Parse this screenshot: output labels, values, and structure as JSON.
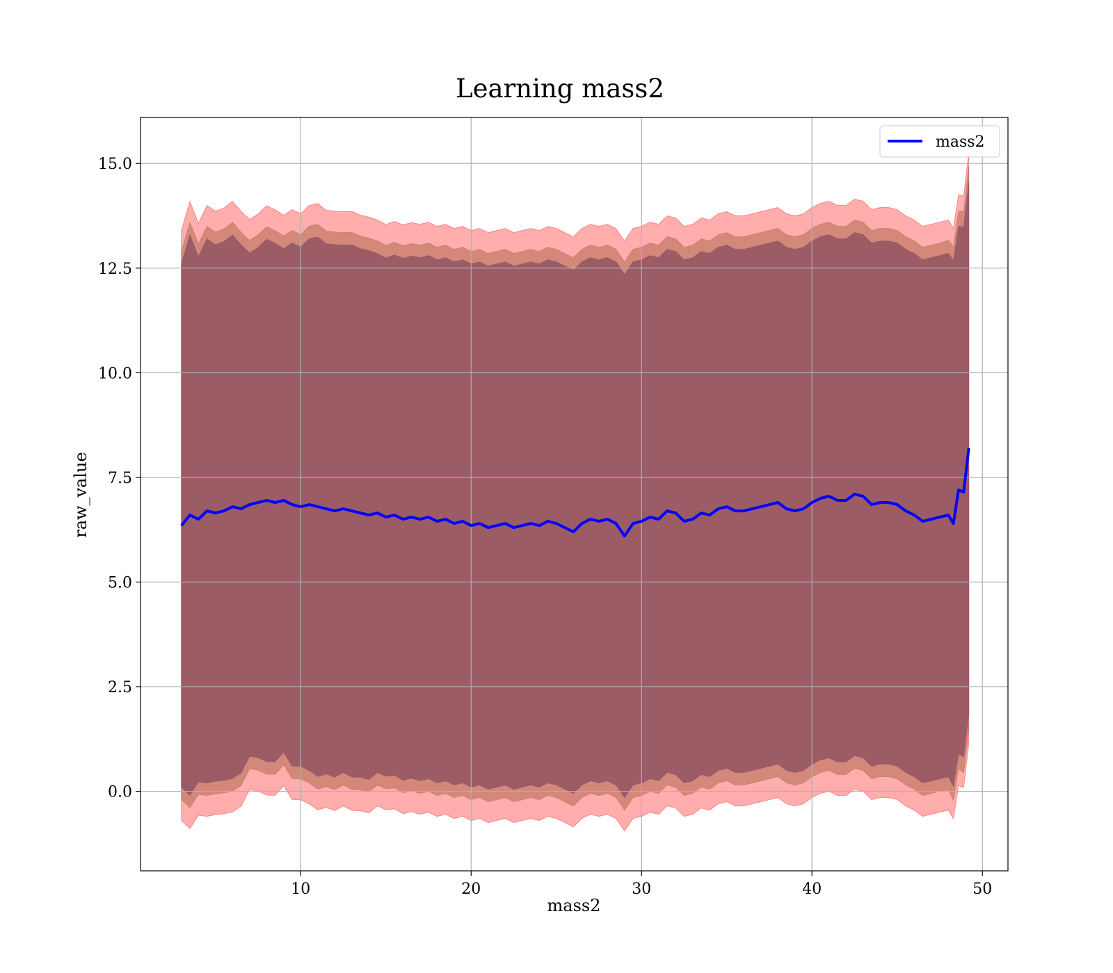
{
  "chart_data": {
    "type": "line",
    "title": "Learning mass2",
    "xlabel": "mass2",
    "ylabel": "raw_value",
    "xlim": [
      0.6,
      51.5
    ],
    "ylim": [
      -1.9,
      16.1
    ],
    "xticks": [
      10,
      20,
      30,
      40,
      50
    ],
    "xtick_labels": [
      "10",
      "20",
      "30",
      "40",
      "50"
    ],
    "yticks": [
      0.0,
      2.5,
      5.0,
      7.5,
      10.0,
      12.5,
      15.0
    ],
    "ytick_labels": [
      "0.0",
      "2.5",
      "5.0",
      "7.5",
      "10.0",
      "12.5",
      "15.0"
    ],
    "grid": true,
    "legend_position": "top-right",
    "series": [
      {
        "name": "mass2",
        "color": "#0000ff",
        "x": [
          3.0,
          3.5,
          4.0,
          4.5,
          5.0,
          5.5,
          6.0,
          6.5,
          7.0,
          7.5,
          8.0,
          8.5,
          9.0,
          9.5,
          10.0,
          10.5,
          11.0,
          11.5,
          12.0,
          12.5,
          13.0,
          13.5,
          14.0,
          14.5,
          15.0,
          15.5,
          16.0,
          16.5,
          17.0,
          17.5,
          18.0,
          18.5,
          19.0,
          19.5,
          20.0,
          20.5,
          21.0,
          21.5,
          22.0,
          22.5,
          23.0,
          23.5,
          24.0,
          24.5,
          25.0,
          25.5,
          26.0,
          26.5,
          27.0,
          27.5,
          28.0,
          28.5,
          29.0,
          29.5,
          30.0,
          30.5,
          31.0,
          31.5,
          32.0,
          32.5,
          33.0,
          33.5,
          34.0,
          34.5,
          35.0,
          35.5,
          36.0,
          36.5,
          37.0,
          37.5,
          38.0,
          38.5,
          39.0,
          39.5,
          40.0,
          40.5,
          41.0,
          41.5,
          42.0,
          42.5,
          43.0,
          43.5,
          44.0,
          44.5,
          45.0,
          45.5,
          46.0,
          46.5,
          47.0,
          47.5,
          48.0,
          48.3,
          48.6,
          48.9,
          49.2
        ],
        "y": [
          6.35,
          6.6,
          6.5,
          6.7,
          6.65,
          6.7,
          6.8,
          6.75,
          6.85,
          6.9,
          6.95,
          6.9,
          6.95,
          6.85,
          6.8,
          6.85,
          6.8,
          6.75,
          6.7,
          6.75,
          6.7,
          6.65,
          6.6,
          6.65,
          6.55,
          6.6,
          6.5,
          6.55,
          6.5,
          6.55,
          6.45,
          6.5,
          6.4,
          6.45,
          6.35,
          6.4,
          6.3,
          6.35,
          6.4,
          6.3,
          6.35,
          6.4,
          6.35,
          6.45,
          6.4,
          6.3,
          6.2,
          6.4,
          6.5,
          6.45,
          6.5,
          6.4,
          6.1,
          6.4,
          6.45,
          6.55,
          6.5,
          6.7,
          6.65,
          6.45,
          6.5,
          6.65,
          6.6,
          6.75,
          6.8,
          6.7,
          6.7,
          6.75,
          6.8,
          6.85,
          6.9,
          6.75,
          6.7,
          6.75,
          6.9,
          7.0,
          7.05,
          6.95,
          6.95,
          7.1,
          7.05,
          6.85,
          6.9,
          6.9,
          6.85,
          6.7,
          6.6,
          6.45,
          6.5,
          6.55,
          6.6,
          6.4,
          7.2,
          7.15,
          8.2
        ]
      }
    ]
  },
  "legend": {
    "label": "mass2"
  },
  "colors": {
    "band_outer": "#ff0000",
    "band_inner": "#800000",
    "line": "#0000ff"
  }
}
